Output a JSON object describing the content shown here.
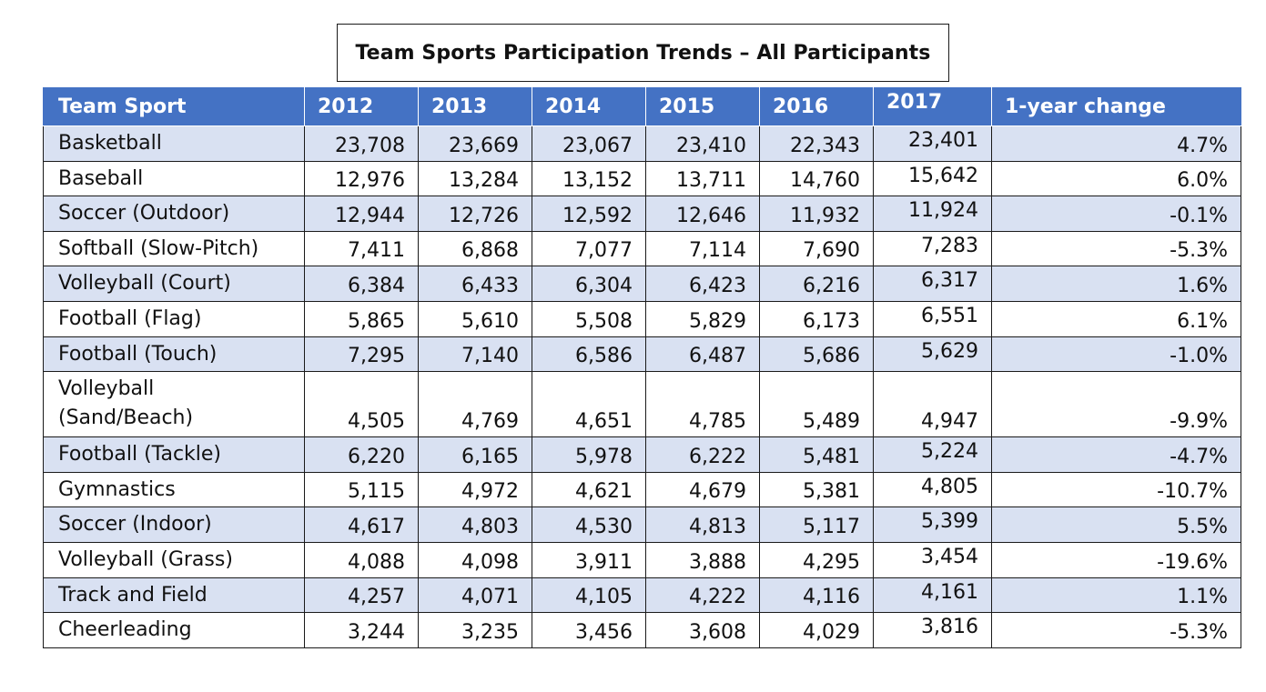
{
  "title": "Team Sports Participation Trends – All Participants",
  "table": {
    "headers": [
      "Team Sport",
      "2012",
      "2013",
      "2014",
      "2015",
      "2016",
      "2017",
      "1-year change"
    ],
    "rows": [
      {
        "sport": "Basketball",
        "values": [
          "23,708",
          "23,669",
          "23,067",
          "23,410",
          "22,343",
          "23,401"
        ],
        "change": "4.7%"
      },
      {
        "sport": "Baseball",
        "values": [
          "12,976",
          "13,284",
          "13,152",
          "13,711",
          "14,760",
          "15,642"
        ],
        "change": "6.0%"
      },
      {
        "sport": "Soccer (Outdoor)",
        "values": [
          "12,944",
          "12,726",
          "12,592",
          "12,646",
          "11,932",
          "11,924"
        ],
        "change": "-0.1%"
      },
      {
        "sport": "Softball (Slow-Pitch)",
        "values": [
          "7,411",
          "6,868",
          "7,077",
          "7,114",
          "7,690",
          "7,283"
        ],
        "change": "-5.3%"
      },
      {
        "sport": "Volleyball (Court)",
        "values": [
          "6,384",
          "6,433",
          "6,304",
          "6,423",
          "6,216",
          "6,317"
        ],
        "change": "1.6%"
      },
      {
        "sport": "Football (Flag)",
        "values": [
          "5,865",
          "5,610",
          "5,508",
          "5,829",
          "6,173",
          "6,551"
        ],
        "change": "6.1%"
      },
      {
        "sport": "Football (Touch)",
        "values": [
          "7,295",
          "7,140",
          "6,586",
          "6,487",
          "5,686",
          "5,629"
        ],
        "change": "-1.0%"
      },
      {
        "sport": "Volleyball (Sand/Beach)",
        "values": [
          "4,505",
          "4,769",
          "4,651",
          "4,785",
          "5,489",
          "4,947"
        ],
        "change": "-9.9%"
      },
      {
        "sport": "Football (Tackle)",
        "values": [
          "6,220",
          "6,165",
          "5,978",
          "6,222",
          "5,481",
          "5,224"
        ],
        "change": "-4.7%"
      },
      {
        "sport": "Gymnastics",
        "values": [
          "5,115",
          "4,972",
          "4,621",
          "4,679",
          "5,381",
          "4,805"
        ],
        "change": "-10.7%"
      },
      {
        "sport": "Soccer (Indoor)",
        "values": [
          "4,617",
          "4,803",
          "4,530",
          "4,813",
          "5,117",
          "5,399"
        ],
        "change": "5.5%"
      },
      {
        "sport": "Volleyball (Grass)",
        "values": [
          "4,088",
          "4,098",
          "3,911",
          "3,888",
          "4,295",
          "3,454"
        ],
        "change": "-19.6%"
      },
      {
        "sport": "Track and Field",
        "values": [
          "4,257",
          "4,071",
          "4,105",
          "4,222",
          "4,116",
          "4,161"
        ],
        "change": "1.1%"
      },
      {
        "sport": "Cheerleading",
        "values": [
          "3,244",
          "3,235",
          "3,456",
          "3,608",
          "4,029",
          "3,816"
        ],
        "change": "-5.3%"
      }
    ]
  }
}
